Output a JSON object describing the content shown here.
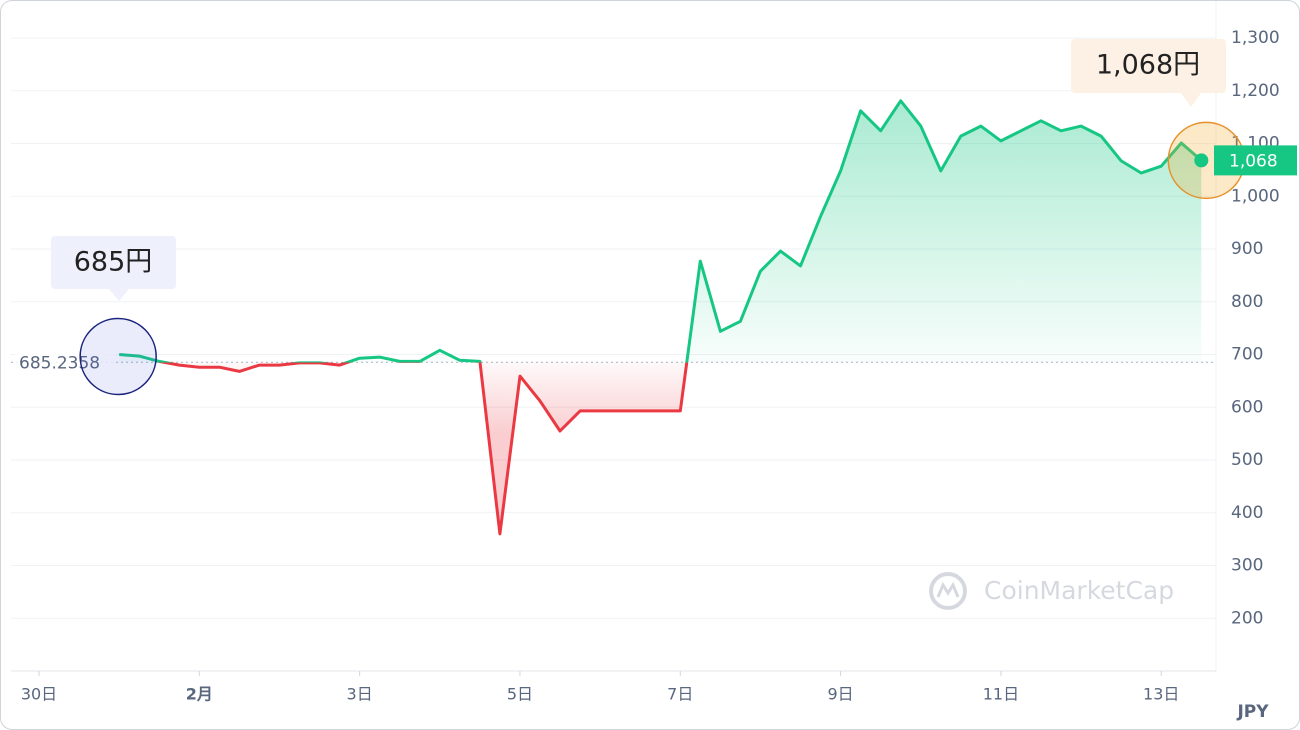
{
  "chart_data": {
    "type": "line",
    "categories": [
      "30日",
      null,
      null,
      null,
      null,
      null,
      null,
      null,
      "2月",
      null,
      null,
      null,
      null,
      null,
      null,
      null,
      "3日",
      null,
      null,
      null,
      null,
      null,
      null,
      null,
      "5日",
      null,
      null,
      null,
      null,
      null,
      null,
      null,
      "7日",
      null,
      null,
      null,
      null,
      null,
      null,
      null,
      "9日",
      null,
      null,
      null,
      null,
      null,
      null,
      null,
      "11日",
      null,
      null,
      null,
      null,
      null,
      null,
      null,
      "13日",
      null,
      null
    ],
    "values": [
      null,
      null,
      null,
      null,
      700,
      697,
      687,
      680,
      676,
      676,
      668,
      680,
      680,
      684,
      684,
      680,
      693,
      695,
      687,
      687,
      708,
      689,
      687,
      360,
      659,
      612,
      555,
      593,
      593,
      593,
      593,
      593,
      593,
      877,
      744,
      763,
      858,
      896,
      868,
      962,
      1048,
      1162,
      1124,
      1181,
      1133,
      1048,
      1114,
      1133,
      1105,
      1124,
      1143,
      1124,
      1133,
      1114,
      1067,
      1044,
      1057,
      1101,
      1068
    ],
    "color_up": "#16c784",
    "color_down": "#ea3943",
    "baseline": {
      "value": 685.2358,
      "label": "685.2358"
    },
    "ylim": [
      100,
      1300
    ],
    "yticks": [
      200,
      300,
      400,
      500,
      600,
      700,
      800,
      900,
      {
        "value": 1000,
        "label": "1,000"
      },
      {
        "value": 1100,
        "label": "1,100"
      },
      {
        "value": 1200,
        "label": "1,200"
      },
      {
        "value": 1300,
        "label": "1,300"
      }
    ],
    "grid": true,
    "price_tag": "1,068",
    "start_callout": {
      "value": 685,
      "label": "685円"
    },
    "end_callout": {
      "value": 1068,
      "label": "1,068円"
    },
    "currency": "JPY",
    "watermark": "CoinMarketCap"
  }
}
